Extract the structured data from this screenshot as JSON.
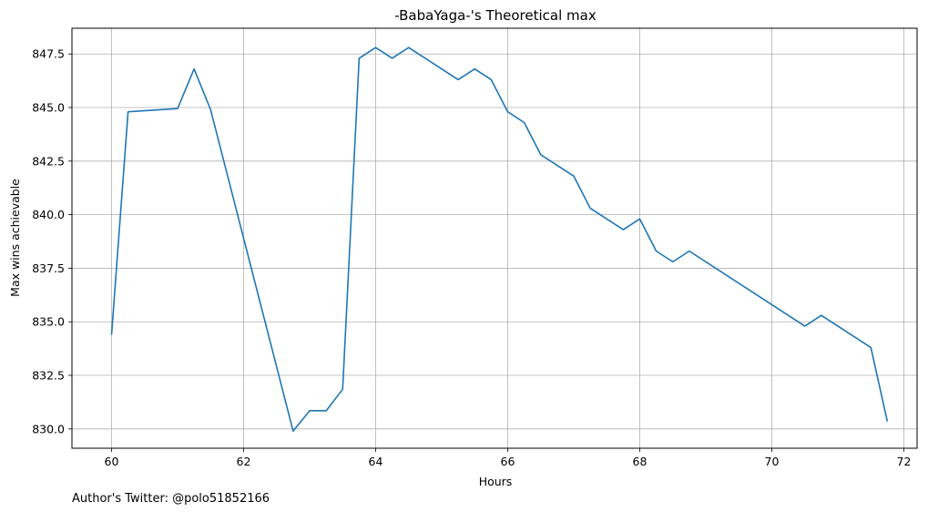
{
  "chart_data": {
    "type": "line",
    "title": "-BabaYaga-'s Theoretical max",
    "xlabel": "Hours",
    "ylabel": "Max wins achievable",
    "xlim": [
      59.4,
      72.2
    ],
    "ylim": [
      829.1,
      848.7
    ],
    "xticks": [
      60,
      62,
      64,
      66,
      68,
      70,
      72
    ],
    "xtick_labels": [
      "60",
      "62",
      "64",
      "66",
      "68",
      "70",
      "72"
    ],
    "yticks": [
      830.0,
      832.5,
      835.0,
      837.5,
      840.0,
      842.5,
      845.0,
      847.5
    ],
    "ytick_labels": [
      "830.0",
      "832.5",
      "835.0",
      "837.5",
      "840.0",
      "842.5",
      "845.0",
      "847.5"
    ],
    "grid": true,
    "series": [
      {
        "color": "#1f77b4",
        "x": [
          60.0,
          60.25,
          61.0,
          61.25,
          61.5,
          62.0,
          62.75,
          63.0,
          63.25,
          63.5,
          63.75,
          64.0,
          64.25,
          64.5,
          65.25,
          65.5,
          65.75,
          66.0,
          66.25,
          66.5,
          67.0,
          67.25,
          67.75,
          68.0,
          68.25,
          68.5,
          68.75,
          70.5,
          70.75,
          71.5,
          71.75
        ],
        "y": [
          834.4,
          844.8,
          844.95,
          846.8,
          844.9,
          838.9,
          829.9,
          830.85,
          830.85,
          831.85,
          847.3,
          847.8,
          847.3,
          847.8,
          846.3,
          846.8,
          846.3,
          844.8,
          844.3,
          842.8,
          841.8,
          840.3,
          839.3,
          839.8,
          838.3,
          837.8,
          838.3,
          834.8,
          835.3,
          833.8,
          830.35
        ]
      }
    ]
  },
  "footer": {
    "text": "Author's Twitter: @polo51852166"
  }
}
